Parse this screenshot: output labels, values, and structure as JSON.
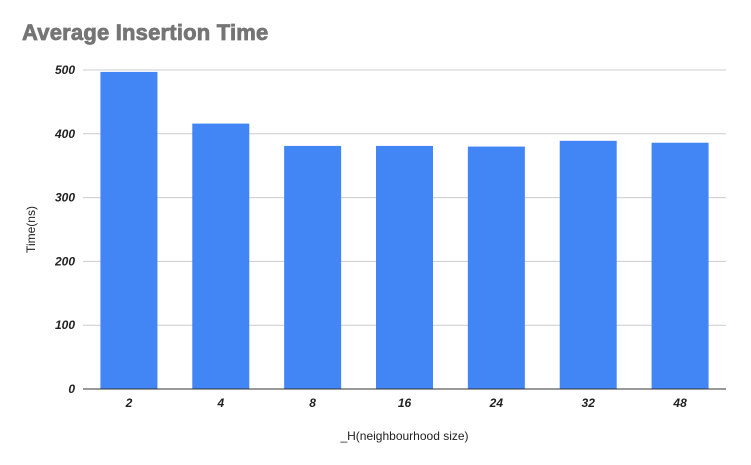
{
  "chart_data": {
    "type": "bar",
    "title": "Average Insertion Time",
    "xlabel": "_H(neighbourhood size)",
    "ylabel": "Time(ns)",
    "categories": [
      "2",
      "4",
      "8",
      "16",
      "24",
      "32",
      "48"
    ],
    "values": [
      497,
      416,
      381,
      381,
      380,
      389,
      386
    ],
    "ylim": [
      0,
      500
    ],
    "yticks": [
      "0",
      "100",
      "200",
      "300",
      "400",
      "500"
    ],
    "ytick_values": [
      0,
      100,
      200,
      300,
      400,
      500
    ],
    "grid": true,
    "legend": "none",
    "colors": {
      "bar": "#4285f4",
      "grid": "#cccccc",
      "axis": "#333333"
    }
  }
}
